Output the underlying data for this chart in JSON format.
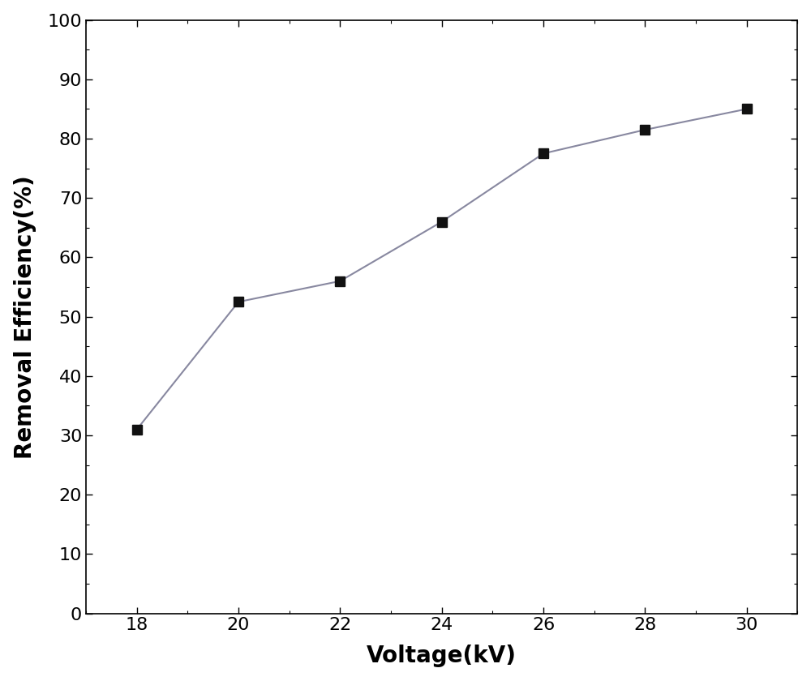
{
  "x": [
    18,
    20,
    22,
    24,
    26,
    28,
    30
  ],
  "y": [
    31,
    52.5,
    56,
    66,
    77.5,
    81.5,
    85
  ],
  "line_color": "#8888a0",
  "marker_color": "#111111",
  "marker": "s",
  "marker_size": 8,
  "line_width": 1.5,
  "xlabel": "Voltage(kV)",
  "ylabel": "Removal Efficiency(%)",
  "xlim": [
    17,
    31
  ],
  "ylim": [
    0,
    100
  ],
  "xticks": [
    18,
    20,
    22,
    24,
    26,
    28,
    30
  ],
  "yticks": [
    0,
    10,
    20,
    30,
    40,
    50,
    60,
    70,
    80,
    90,
    100
  ],
  "xlabel_fontsize": 20,
  "ylabel_fontsize": 20,
  "tick_fontsize": 16,
  "background_color": "#ffffff",
  "spine_color": "#000000",
  "figsize": [
    10.0,
    8.4
  ],
  "dpi": 100
}
